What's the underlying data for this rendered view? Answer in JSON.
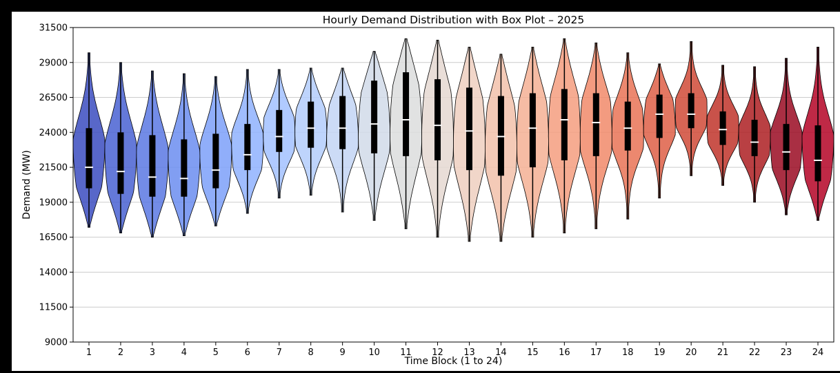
{
  "chart_data": {
    "type": "violin",
    "title": "Hourly Demand Distribution with Box Plot – 2025",
    "xlabel": "Time Block (1 to 24)",
    "ylabel": "Demand (MW)",
    "ylim": [
      9000,
      31500
    ],
    "yticks": [
      "9000",
      "11500",
      "14000",
      "16500",
      "19000",
      "21500",
      "24000",
      "26500",
      "29000",
      "31500"
    ],
    "grid": "horizontal",
    "colormap": "coolwarm",
    "colors": [
      "#3b4cc0",
      "#4961d2",
      "#5a78e3",
      "#6b8df0",
      "#7da0f9",
      "#8fb1fe",
      "#a2c1ff",
      "#b3cdfb",
      "#c3d5f4",
      "#d1dae9",
      "#dcdddd",
      "#e5d8d1",
      "#eecfbf",
      "#f2c1aa",
      "#f5b094",
      "#f59d7f",
      "#f1896a",
      "#e97356",
      "#de5f46",
      "#d04a37",
      "#c0342a",
      "#ad1f22",
      "#9a0a22",
      "#b40426"
    ],
    "categories": [
      "1",
      "2",
      "3",
      "4",
      "5",
      "6",
      "7",
      "8",
      "9",
      "10",
      "11",
      "12",
      "13",
      "14",
      "15",
      "16",
      "17",
      "18",
      "19",
      "20",
      "21",
      "22",
      "23",
      "24"
    ],
    "series": [
      {
        "x": "1",
        "min": 17200,
        "q1": 20000,
        "median": 21500,
        "q3": 24300,
        "max": 29700
      },
      {
        "x": "2",
        "min": 16800,
        "q1": 19600,
        "median": 21200,
        "q3": 24000,
        "max": 29000
      },
      {
        "x": "3",
        "min": 16500,
        "q1": 19400,
        "median": 20800,
        "q3": 23800,
        "max": 28400
      },
      {
        "x": "4",
        "min": 16600,
        "q1": 19400,
        "median": 20700,
        "q3": 23500,
        "max": 28200
      },
      {
        "x": "5",
        "min": 17300,
        "q1": 20000,
        "median": 21300,
        "q3": 23900,
        "max": 28000
      },
      {
        "x": "6",
        "min": 18200,
        "q1": 21300,
        "median": 22400,
        "q3": 24600,
        "max": 28500
      },
      {
        "x": "7",
        "min": 19300,
        "q1": 22600,
        "median": 23700,
        "q3": 25600,
        "max": 28500
      },
      {
        "x": "8",
        "min": 19500,
        "q1": 22900,
        "median": 24300,
        "q3": 26200,
        "max": 28600
      },
      {
        "x": "9",
        "min": 18300,
        "q1": 22800,
        "median": 24300,
        "q3": 26600,
        "max": 28600
      },
      {
        "x": "10",
        "min": 17700,
        "q1": 22500,
        "median": 24600,
        "q3": 27700,
        "max": 29800
      },
      {
        "x": "11",
        "min": 17100,
        "q1": 22300,
        "median": 24900,
        "q3": 28300,
        "max": 30700
      },
      {
        "x": "12",
        "min": 16500,
        "q1": 22000,
        "median": 24500,
        "q3": 27800,
        "max": 30600
      },
      {
        "x": "13",
        "min": 16200,
        "q1": 21300,
        "median": 24100,
        "q3": 27200,
        "max": 30100
      },
      {
        "x": "14",
        "min": 16200,
        "q1": 20900,
        "median": 23700,
        "q3": 26600,
        "max": 29600
      },
      {
        "x": "15",
        "min": 16500,
        "q1": 21500,
        "median": 24300,
        "q3": 26800,
        "max": 30100
      },
      {
        "x": "16",
        "min": 16800,
        "q1": 22000,
        "median": 24900,
        "q3": 27100,
        "max": 30700
      },
      {
        "x": "17",
        "min": 17100,
        "q1": 22300,
        "median": 24700,
        "q3": 26800,
        "max": 30400
      },
      {
        "x": "18",
        "min": 17800,
        "q1": 22700,
        "median": 24300,
        "q3": 26200,
        "max": 29700
      },
      {
        "x": "19",
        "min": 19300,
        "q1": 23600,
        "median": 25300,
        "q3": 26700,
        "max": 28900
      },
      {
        "x": "20",
        "min": 20900,
        "q1": 24300,
        "median": 25300,
        "q3": 26800,
        "max": 30500
      },
      {
        "x": "21",
        "min": 20200,
        "q1": 23100,
        "median": 24200,
        "q3": 25500,
        "max": 28800
      },
      {
        "x": "22",
        "min": 19000,
        "q1": 22300,
        "median": 23300,
        "q3": 24900,
        "max": 28700
      },
      {
        "x": "23",
        "min": 18100,
        "q1": 21300,
        "median": 22600,
        "q3": 24600,
        "max": 29300
      },
      {
        "x": "24",
        "min": 17700,
        "q1": 20500,
        "median": 22000,
        "q3": 24500,
        "max": 30100
      }
    ]
  }
}
